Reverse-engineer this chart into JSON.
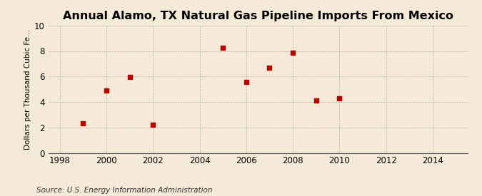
{
  "title": "Annual Alamo, TX Natural Gas Pipeline Imports From Mexico",
  "ylabel": "Dollars per Thousand Cubic Fe...",
  "source": "Source: U.S. Energy Information Administration",
  "background_color": "#f5ead8",
  "x_data": [
    1999,
    2000,
    2001,
    2002,
    2005,
    2006,
    2007,
    2008,
    2009,
    2010
  ],
  "y_data": [
    2.3,
    4.9,
    5.95,
    2.2,
    8.25,
    5.55,
    6.7,
    7.85,
    4.1,
    4.3
  ],
  "marker_color": "#bb0000",
  "marker_size": 18,
  "xlim": [
    1997.5,
    2015.5
  ],
  "ylim": [
    0,
    10
  ],
  "xticks": [
    1998,
    2000,
    2002,
    2004,
    2006,
    2008,
    2010,
    2012,
    2014
  ],
  "yticks": [
    0,
    2,
    4,
    6,
    8,
    10
  ],
  "title_fontsize": 11.5,
  "ylabel_fontsize": 7.5,
  "source_fontsize": 7.5,
  "tick_fontsize": 8.5
}
